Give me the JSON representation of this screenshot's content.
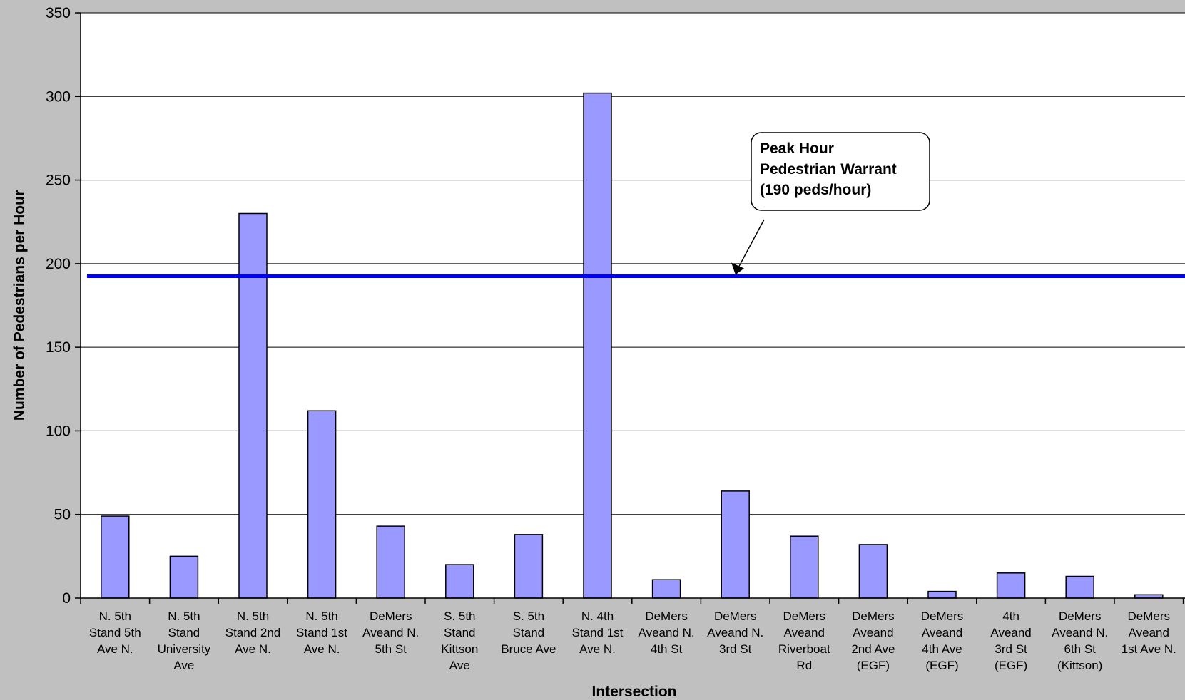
{
  "chart_data": {
    "type": "bar",
    "title": "",
    "xlabel": "Intersection",
    "ylabel": "Number of Pedestrians per Hour",
    "ylim": [
      0,
      350
    ],
    "yticks": [
      0,
      50,
      100,
      150,
      200,
      250,
      300,
      350
    ],
    "grid": true,
    "legend": "none",
    "categories": [
      [
        "N. 5th",
        "Stand 5th",
        "Ave N."
      ],
      [
        "N. 5th",
        "Stand",
        "University",
        "Ave"
      ],
      [
        "N. 5th",
        "Stand 2nd",
        "Ave N."
      ],
      [
        "N. 5th",
        "Stand 1st",
        "Ave N."
      ],
      [
        "DeMers",
        "Aveand N.",
        "5th St"
      ],
      [
        "S. 5th",
        "Stand",
        "Kittson",
        "Ave"
      ],
      [
        "S. 5th",
        "Stand",
        "Bruce Ave"
      ],
      [
        "N. 4th",
        "Stand 1st",
        "Ave N."
      ],
      [
        "DeMers",
        "Aveand N.",
        "4th St"
      ],
      [
        "DeMers",
        "Aveand N.",
        "3rd St"
      ],
      [
        "DeMers",
        "Aveand",
        "Riverboat",
        "Rd"
      ],
      [
        "DeMers",
        "Aveand",
        "2nd Ave",
        "(EGF)"
      ],
      [
        "DeMers",
        "Aveand",
        "4th Ave",
        "(EGF)"
      ],
      [
        "4th",
        "Aveand",
        "3rd St",
        "(EGF)"
      ],
      [
        "DeMers",
        "Aveand N.",
        "6th St",
        "(Kittson)"
      ],
      [
        "DeMers",
        "Aveand",
        "1st Ave N."
      ]
    ],
    "values": [
      49,
      25,
      230,
      112,
      43,
      20,
      38,
      302,
      11,
      64,
      37,
      32,
      4,
      15,
      13,
      2
    ],
    "warrant_line": {
      "value": 192.5,
      "label": [
        "Peak Hour",
        "Pedestrian Warrant",
        "(190 peds/hour)"
      ]
    }
  },
  "colors": {
    "background": "#c0c0c0",
    "plot_area": "#ffffff",
    "bar_fill": "#9999ff",
    "bar_stroke": "#000000",
    "warrant_line": "#0000ff",
    "gridline": "#000000"
  }
}
